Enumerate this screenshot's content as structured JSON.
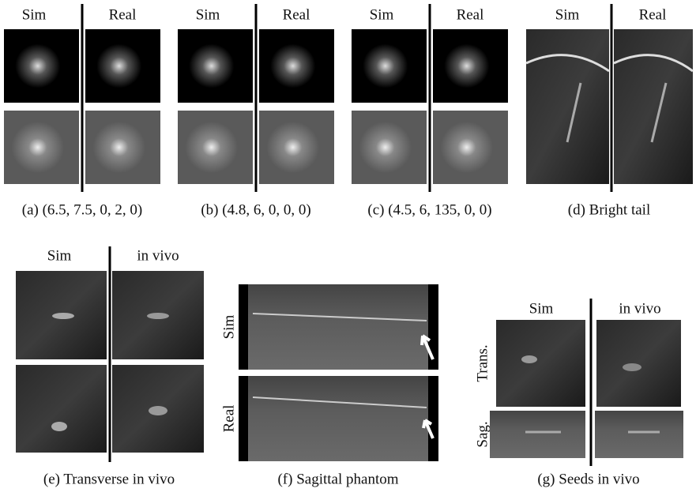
{
  "panels": [
    {
      "left_label": "Sim",
      "right_label": "Real",
      "caption": "(a) (6.5, 7.5, 0, 2, 0)"
    },
    {
      "left_label": "Sim",
      "right_label": "Real",
      "caption": "(b) (4.8, 6, 0, 0, 0)"
    },
    {
      "left_label": "Sim",
      "right_label": "Real",
      "caption": "(c) (4.5, 6, 135, 0, 0)"
    },
    {
      "left_label": "Sim",
      "right_label": "Real",
      "caption": "(d) Bright tail"
    },
    {
      "left_label": "Sim",
      "right_label": "in vivo",
      "caption": "(e) Transverse in vivo"
    },
    {
      "row_labels": [
        "Sim",
        "Real"
      ],
      "caption": "(f) Sagittal phantom"
    },
    {
      "left_label": "Sim",
      "right_label": "in vivo",
      "row_labels": [
        "Trans.",
        "Sag."
      ],
      "caption": "(g) Seeds in vivo"
    }
  ]
}
